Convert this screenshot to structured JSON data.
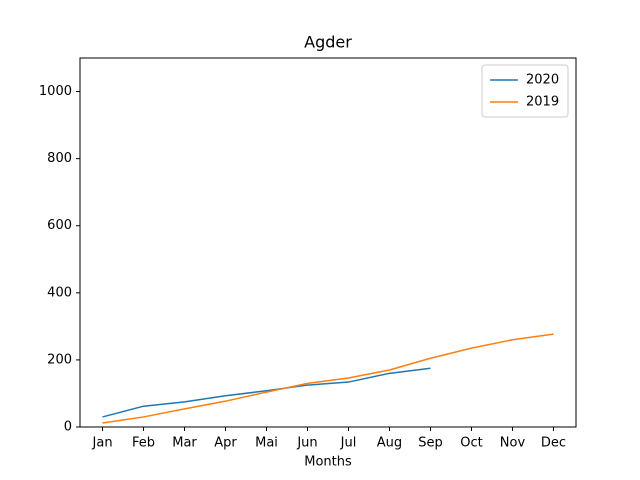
{
  "chart_data": {
    "type": "line",
    "title": "Agder",
    "xlabel": "Months",
    "categories": [
      "Jan",
      "Feb",
      "Mar",
      "Apr",
      "Mai",
      "Jun",
      "Jul",
      "Aug",
      "Sep",
      "Oct",
      "Nov",
      "Dec"
    ],
    "series": [
      {
        "name": "2020",
        "color": "#1f77b4",
        "values": [
          30,
          62,
          75,
          93,
          108,
          125,
          134,
          160,
          175,
          null,
          null,
          null
        ]
      },
      {
        "name": "2019",
        "color": "#ff7f0e",
        "values": [
          12,
          30,
          54,
          77,
          104,
          130,
          146,
          170,
          205,
          235,
          260,
          277
        ]
      }
    ],
    "ylim": [
      0,
      1100
    ],
    "yticks": [
      0,
      200,
      400,
      600,
      800,
      1000
    ],
    "grid": false,
    "legend": "upper right"
  }
}
